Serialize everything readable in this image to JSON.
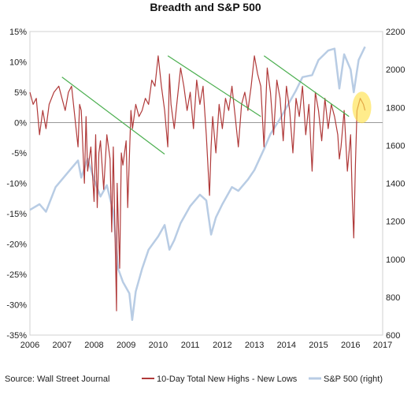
{
  "chart_data": {
    "type": "line",
    "title": "Breadth and S&P 500",
    "source": "Source: Wall Street Journal",
    "x_ticks": [
      "2006",
      "2007",
      "2008",
      "2009",
      "2010",
      "2011",
      "2012",
      "2013",
      "2014",
      "2015",
      "2016",
      "2017"
    ],
    "xlim": [
      2006,
      2017
    ],
    "y_left": {
      "lim": [
        -35,
        15
      ],
      "ticks": [
        "15%",
        "10%",
        "5%",
        "0%",
        "-5%",
        "-10%",
        "-15%",
        "-20%",
        "-25%",
        "-30%",
        "-35%"
      ],
      "grid": false
    },
    "y_right": {
      "lim": [
        600,
        2200
      ],
      "ticks": [
        "2200",
        "2000",
        "1800",
        "1600",
        "1400",
        "1200",
        "1000",
        "800",
        "600"
      ]
    },
    "legend_position": "bottom",
    "series": [
      {
        "name": "10-Day Total New Highs - New Lows",
        "axis": "left",
        "color": "#b03a3a",
        "x": [
          2006.0,
          2006.1,
          2006.2,
          2006.3,
          2006.4,
          2006.5,
          2006.6,
          2006.75,
          2006.9,
          2007.0,
          2007.1,
          2007.2,
          2007.3,
          2007.4,
          2007.5,
          2007.55,
          2007.6,
          2007.7,
          2007.75,
          2007.8,
          2007.9,
          2008.0,
          2008.05,
          2008.1,
          2008.15,
          2008.2,
          2008.3,
          2008.4,
          2008.5,
          2008.55,
          2008.6,
          2008.7,
          2008.72,
          2008.8,
          2008.85,
          2008.9,
          2009.0,
          2009.05,
          2009.15,
          2009.2,
          2009.3,
          2009.4,
          2009.5,
          2009.6,
          2009.7,
          2009.8,
          2009.9,
          2010.0,
          2010.1,
          2010.2,
          2010.3,
          2010.35,
          2010.4,
          2010.5,
          2010.6,
          2010.7,
          2010.8,
          2010.9,
          2011.0,
          2011.1,
          2011.2,
          2011.3,
          2011.4,
          2011.5,
          2011.6,
          2011.65,
          2011.7,
          2011.8,
          2011.9,
          2012.0,
          2012.1,
          2012.2,
          2012.3,
          2012.4,
          2012.5,
          2012.6,
          2012.7,
          2012.8,
          2012.9,
          2013.0,
          2013.1,
          2013.2,
          2013.3,
          2013.4,
          2013.5,
          2013.6,
          2013.7,
          2013.8,
          2013.9,
          2014.0,
          2014.1,
          2014.2,
          2014.3,
          2014.4,
          2014.5,
          2014.6,
          2014.7,
          2014.8,
          2014.9,
          2015.0,
          2015.1,
          2015.2,
          2015.3,
          2015.4,
          2015.5,
          2015.6,
          2015.65,
          2015.7,
          2015.8,
          2015.9,
          2016.0,
          2016.05,
          2016.1,
          2016.15,
          2016.2,
          2016.3,
          2016.4,
          2016.45
        ],
        "values": [
          5,
          3,
          4,
          -2,
          2,
          -1,
          3,
          5,
          6,
          4,
          2,
          5,
          6,
          1,
          -4,
          3,
          2,
          -10,
          1,
          -8,
          -4,
          -13,
          -2,
          -14,
          -5,
          -3,
          -11,
          -2,
          -6,
          -18,
          -4,
          -31,
          -10,
          -24,
          -5,
          -7,
          -3,
          -14,
          2,
          -1,
          3,
          1,
          2,
          4,
          3,
          7,
          6,
          11,
          6,
          2,
          -4,
          8,
          3,
          -1,
          4,
          9,
          6,
          2,
          5,
          -1,
          7,
          3,
          6,
          -2,
          -12,
          -4,
          1,
          -5,
          3,
          -1,
          4,
          2,
          6,
          1,
          -4,
          3,
          5,
          2,
          6,
          11,
          8,
          6,
          -4,
          9,
          5,
          -2,
          7,
          4,
          -3,
          6,
          2,
          -5,
          4,
          1,
          6,
          -2,
          3,
          -8,
          5,
          2,
          -3,
          4,
          -1,
          3,
          1,
          -2,
          -6,
          -4,
          2,
          -8,
          -2,
          -12,
          -19,
          -7,
          2,
          4,
          3,
          2
        ]
      },
      {
        "name": "S&P 500 (right)",
        "axis": "right",
        "color": "#b8cce4",
        "x": [
          2006.0,
          2006.3,
          2006.5,
          2006.8,
          2007.0,
          2007.3,
          2007.5,
          2007.6,
          2007.8,
          2008.0,
          2008.2,
          2008.4,
          2008.6,
          2008.75,
          2008.9,
          2009.1,
          2009.19,
          2009.3,
          2009.5,
          2009.7,
          2010.0,
          2010.2,
          2010.35,
          2010.5,
          2010.7,
          2011.0,
          2011.3,
          2011.5,
          2011.65,
          2011.8,
          2012.0,
          2012.3,
          2012.5,
          2012.8,
          2013.0,
          2013.3,
          2013.5,
          2013.8,
          2014.0,
          2014.3,
          2014.5,
          2014.8,
          2015.0,
          2015.3,
          2015.5,
          2015.65,
          2015.8,
          2016.0,
          2016.1,
          2016.25,
          2016.45
        ],
        "values": [
          1260,
          1290,
          1250,
          1380,
          1420,
          1480,
          1520,
          1430,
          1530,
          1420,
          1330,
          1390,
          1250,
          950,
          880,
          820,
          680,
          830,
          950,
          1050,
          1120,
          1180,
          1050,
          1100,
          1190,
          1280,
          1340,
          1310,
          1130,
          1220,
          1290,
          1380,
          1360,
          1420,
          1470,
          1580,
          1660,
          1740,
          1800,
          1890,
          1960,
          1970,
          2050,
          2100,
          2110,
          1900,
          2080,
          2000,
          1880,
          2050,
          2120
        ]
      }
    ],
    "trendlines": [
      {
        "x": [
          2007.0,
          2010.2
        ],
        "values": [
          7.5,
          -5.2
        ]
      },
      {
        "x": [
          2010.3,
          2013.2
        ],
        "values": [
          11,
          1
        ]
      },
      {
        "x": [
          2013.3,
          2015.95
        ],
        "values": [
          11,
          1
        ]
      }
    ],
    "trendline_color": "#4caf50",
    "highlight": {
      "x": 2016.35,
      "y": 2.5,
      "color": "#ffe24d"
    }
  }
}
